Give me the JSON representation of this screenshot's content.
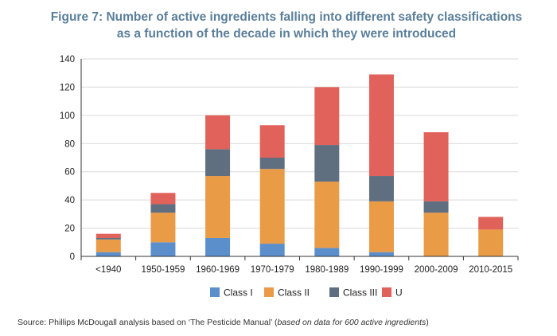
{
  "chart_data": {
    "type": "bar",
    "stacked": true,
    "title_line1": "Figure 7: Number of active ingredients falling into different safety classifications",
    "title_line2": "as a function of the decade in which they were introduced",
    "categories": [
      "<1940",
      "1950-1959",
      "1960-1969",
      "1970-1979",
      "1980-1989",
      "1990-1999",
      "2000-2009",
      "2010-2015"
    ],
    "series": [
      {
        "name": "Class I",
        "color": "#5b8fcc",
        "values": [
          3,
          10,
          13,
          9,
          6,
          3,
          0,
          0
        ]
      },
      {
        "name": "Class II",
        "color": "#e99b46",
        "values": [
          9,
          21,
          44,
          53,
          47,
          36,
          31,
          19
        ]
      },
      {
        "name": "Class III",
        "color": "#5f6f80",
        "values": [
          1,
          6,
          19,
          8,
          26,
          18,
          8,
          0
        ]
      },
      {
        "name": "U",
        "color": "#e0625a",
        "values": [
          3,
          8,
          24,
          23,
          41,
          72,
          49,
          9
        ]
      }
    ],
    "ylim": [
      0,
      140
    ],
    "yticks": [
      0,
      20,
      40,
      60,
      80,
      100,
      120,
      140
    ],
    "grid": true,
    "legend": "bottom",
    "xlabel": "",
    "ylabel": ""
  },
  "source_prefix": "Source: Phillips McDougall analysis based on ‘The Pesticide Manual’ (",
  "source_italic": "based on data for 600 active ingredients",
  "source_suffix": ")"
}
